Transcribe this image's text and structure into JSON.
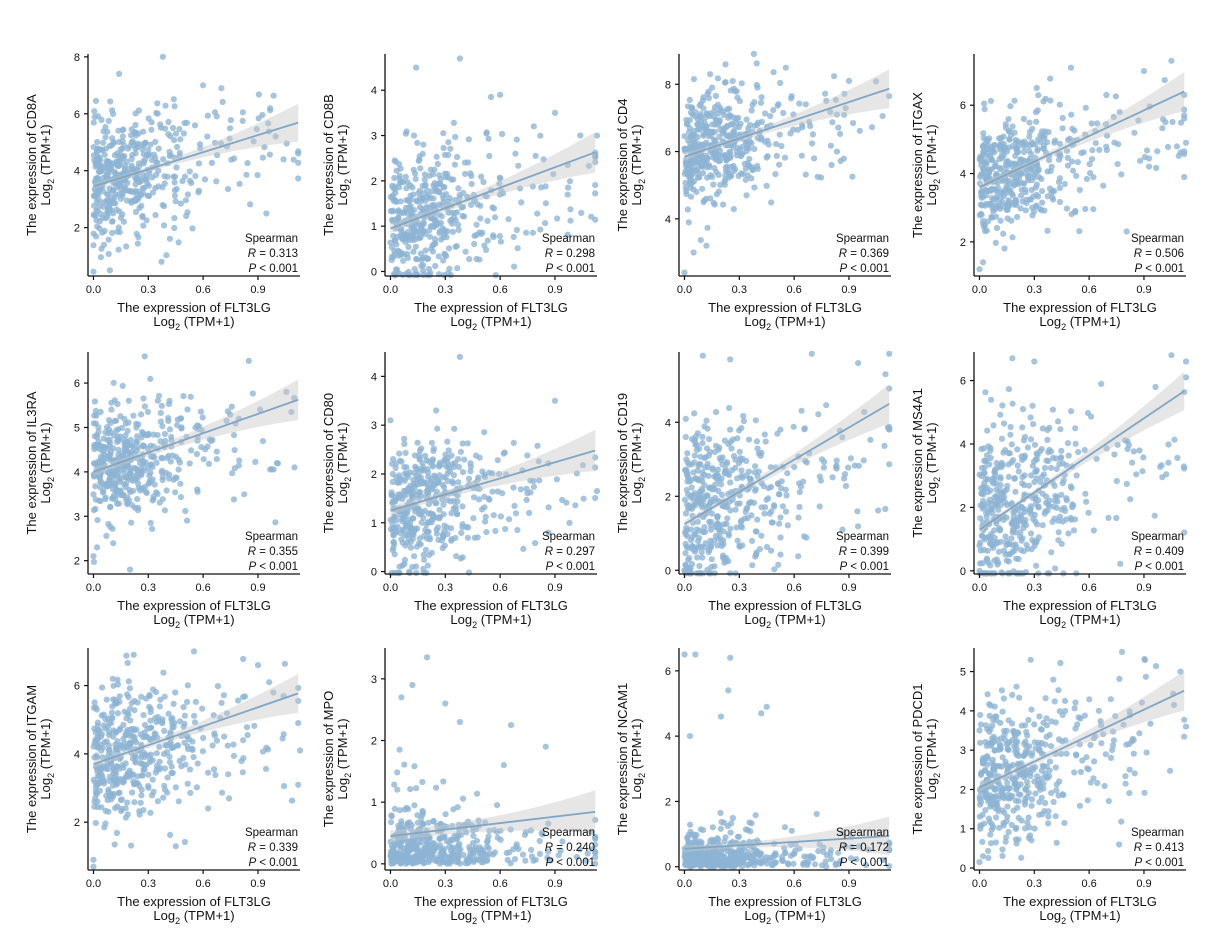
{
  "chart_data": [
    {
      "type": "scatter",
      "gene": "CD8A",
      "ylabel": "The expression of CD8A",
      "ylabel_sub": "Log2 (TPM+1)",
      "xlabel": "The expression of FLT3LG",
      "xlabel_sub": "Log2 (TPM+1)",
      "xlim": [
        -0.03,
        1.13
      ],
      "ylim": [
        0.3,
        8.1
      ],
      "xticks": [
        "0.0",
        "0.3",
        "0.6",
        "0.9"
      ],
      "yticks": [
        "2",
        "4",
        "6",
        "8"
      ],
      "fit": {
        "intercept": 3.45,
        "slope": 2.0
      },
      "stat_method": "Spearman",
      "r_text": "R = 0.313",
      "p_text": "P < 0.001",
      "y_mean": 3.9,
      "y_spread": 1.1,
      "n_points": 460,
      "outliers": [
        [
          0.38,
          8.0
        ],
        [
          0.14,
          7.4
        ],
        [
          0.6,
          7.0
        ],
        [
          0.7,
          6.9
        ],
        [
          0.0,
          0.45
        ],
        [
          0.09,
          0.5
        ]
      ]
    },
    {
      "type": "scatter",
      "gene": "CD8B",
      "ylabel": "The expression of CD8B",
      "ylabel_sub": "Log2 (TPM+1)",
      "xlabel": "The expression of FLT3LG",
      "xlabel_sub": "Log2 (TPM+1)",
      "xlim": [
        -0.03,
        1.13
      ],
      "ylim": [
        -0.1,
        4.8
      ],
      "xticks": [
        "0.0",
        "0.3",
        "0.6",
        "0.9"
      ],
      "yticks": [
        "0",
        "1",
        "2",
        "3",
        "4"
      ],
      "fit": {
        "intercept": 0.95,
        "slope": 1.5
      },
      "stat_method": "Spearman",
      "r_text": "R = 0.298",
      "p_text": "P < 0.001",
      "y_mean": 1.2,
      "y_spread": 0.75,
      "n_points": 460,
      "outliers": [
        [
          0.38,
          4.7
        ],
        [
          0.14,
          4.5
        ],
        [
          0.6,
          3.9
        ],
        [
          0.55,
          3.85
        ],
        [
          0.9,
          3.5
        ],
        [
          1.13,
          3.0
        ]
      ]
    },
    {
      "type": "scatter",
      "gene": "CD4",
      "ylabel": "The expression of CD4",
      "ylabel_sub": "Log2 (TPM+1)",
      "xlabel": "The expression of FLT3LG",
      "xlabel_sub": "Log2 (TPM+1)",
      "xlim": [
        -0.03,
        1.13
      ],
      "ylim": [
        2.3,
        8.9
      ],
      "xticks": [
        "0.0",
        "0.3",
        "0.6",
        "0.9"
      ],
      "yticks": [
        "4",
        "6",
        "8"
      ],
      "fit": {
        "intercept": 5.85,
        "slope": 1.8
      },
      "stat_method": "Spearman",
      "r_text": "R = 0.369",
      "p_text": "P < 0.001",
      "y_mean": 6.2,
      "y_spread": 0.75,
      "n_points": 460,
      "outliers": [
        [
          0.38,
          8.9
        ],
        [
          0.14,
          8.3
        ],
        [
          0.9,
          8.1
        ],
        [
          0.0,
          2.4
        ],
        [
          0.05,
          3.0
        ],
        [
          0.12,
          3.2
        ]
      ]
    },
    {
      "type": "scatter",
      "gene": "ITGAX",
      "ylabel": "The expression of ITGAX",
      "ylabel_sub": "Log2 (TPM+1)",
      "xlabel": "The expression of FLT3LG",
      "xlabel_sub": "Log2 (TPM+1)",
      "xlim": [
        -0.03,
        1.13
      ],
      "ylim": [
        1.0,
        7.5
      ],
      "xticks": [
        "0.0",
        "0.3",
        "0.6",
        "0.9"
      ],
      "yticks": [
        "2",
        "4",
        "6"
      ],
      "fit": {
        "intercept": 3.6,
        "slope": 2.5
      },
      "stat_method": "Spearman",
      "r_text": "R = 0.506",
      "p_text": "P < 0.001",
      "y_mean": 4.0,
      "y_spread": 0.85,
      "n_points": 460,
      "outliers": [
        [
          1.05,
          7.3
        ],
        [
          0.5,
          7.1
        ],
        [
          0.9,
          7.0
        ],
        [
          0.0,
          1.2
        ],
        [
          0.02,
          1.4
        ],
        [
          1.13,
          4.9
        ]
      ]
    },
    {
      "type": "scatter",
      "gene": "IL3RA",
      "ylabel": "The expression of IL3RA",
      "ylabel_sub": "Log2 (TPM+1)",
      "xlabel": "The expression of FLT3LG",
      "xlabel_sub": "Log2 (TPM+1)",
      "xlim": [
        -0.03,
        1.13
      ],
      "ylim": [
        1.7,
        6.7
      ],
      "xticks": [
        "0.0",
        "0.3",
        "0.6",
        "0.9"
      ],
      "yticks": [
        "2",
        "3",
        "4",
        "5",
        "6"
      ],
      "fit": {
        "intercept": 4.0,
        "slope": 1.45
      },
      "stat_method": "Spearman",
      "r_text": "R = 0.355",
      "p_text": "P < 0.001",
      "y_mean": 4.2,
      "y_spread": 0.6,
      "n_points": 460,
      "outliers": [
        [
          0.28,
          6.6
        ],
        [
          0.85,
          6.5
        ],
        [
          1.1,
          4.1
        ],
        [
          0.0,
          2.1
        ],
        [
          0.02,
          2.3
        ],
        [
          0.2,
          1.8
        ]
      ]
    },
    {
      "type": "scatter",
      "gene": "CD80",
      "ylabel": "The expression of CD80",
      "ylabel_sub": "Log2 (TPM+1)",
      "xlabel": "The expression of FLT3LG",
      "xlabel_sub": "Log2 (TPM+1)",
      "xlim": [
        -0.03,
        1.13
      ],
      "ylim": [
        -0.05,
        4.5
      ],
      "xticks": [
        "0.0",
        "0.3",
        "0.6",
        "0.9"
      ],
      "yticks": [
        "0",
        "1",
        "2",
        "3",
        "4"
      ],
      "fit": {
        "intercept": 1.25,
        "slope": 1.1
      },
      "stat_method": "Spearman",
      "r_text": "R = 0.297",
      "p_text": "P < 0.001",
      "y_mean": 1.35,
      "y_spread": 0.65,
      "n_points": 460,
      "outliers": [
        [
          0.38,
          4.4
        ],
        [
          0.9,
          3.5
        ],
        [
          0.0,
          3.1
        ],
        [
          0.25,
          3.3
        ],
        [
          1.13,
          1.65
        ],
        [
          0.05,
          0.1
        ]
      ]
    },
    {
      "type": "scatter",
      "gene": "CD19",
      "ylabel": "The expression of CD19",
      "ylabel_sub": "Log2 (TPM+1)",
      "xlabel": "The expression of FLT3LG",
      "xlabel_sub": "Log2 (TPM+1)",
      "xlim": [
        -0.03,
        1.13
      ],
      "ylim": [
        -0.1,
        5.9
      ],
      "xticks": [
        "0.0",
        "0.3",
        "0.6",
        "0.9"
      ],
      "yticks": [
        "0",
        "2",
        "4"
      ],
      "fit": {
        "intercept": 1.25,
        "slope": 2.9
      },
      "stat_method": "Spearman",
      "r_text": "R = 0.399",
      "p_text": "P < 0.001",
      "y_mean": 1.9,
      "y_spread": 1.1,
      "n_points": 460,
      "outliers": [
        [
          0.1,
          5.8
        ],
        [
          0.25,
          5.7
        ],
        [
          0.95,
          5.6
        ],
        [
          1.1,
          5.3
        ],
        [
          0.0,
          0.0
        ],
        [
          0.02,
          0.05
        ]
      ]
    },
    {
      "type": "scatter",
      "gene": "MS4A1",
      "ylabel": "The expression of MS4A1",
      "ylabel_sub": "Log2 (TPM+1)",
      "xlabel": "The expression of FLT3LG",
      "xlabel_sub": "Log2 (TPM+1)",
      "xlim": [
        -0.03,
        1.13
      ],
      "ylim": [
        -0.1,
        6.9
      ],
      "xticks": [
        "0.0",
        "0.3",
        "0.6",
        "0.9"
      ],
      "yticks": [
        "0",
        "2",
        "4",
        "6"
      ],
      "fit": {
        "intercept": 1.3,
        "slope": 3.9
      },
      "stat_method": "Spearman",
      "r_text": "R = 0.409",
      "p_text": "P < 0.001",
      "y_mean": 2.0,
      "y_spread": 1.4,
      "n_points": 460,
      "outliers": [
        [
          0.18,
          6.7
        ],
        [
          0.3,
          6.6
        ],
        [
          1.05,
          6.8
        ],
        [
          1.13,
          6.6
        ],
        [
          1.13,
          6.1
        ],
        [
          0.0,
          0.0
        ]
      ]
    },
    {
      "type": "scatter",
      "gene": "ITGAM",
      "ylabel": "The expression of ITGAM",
      "ylabel_sub": "Log2 (TPM+1)",
      "xlabel": "The expression of FLT3LG",
      "xlabel_sub": "Log2 (TPM+1)",
      "xlim": [
        -0.03,
        1.13
      ],
      "ylim": [
        0.6,
        7.1
      ],
      "xticks": [
        "0.0",
        "0.3",
        "0.6",
        "0.9"
      ],
      "yticks": [
        "2",
        "4",
        "6"
      ],
      "fit": {
        "intercept": 3.7,
        "slope": 1.85
      },
      "stat_method": "Spearman",
      "r_text": "R = 0.339",
      "p_text": "P < 0.001",
      "y_mean": 3.9,
      "y_spread": 1.0,
      "n_points": 460,
      "outliers": [
        [
          0.22,
          6.9
        ],
        [
          0.55,
          7.0
        ],
        [
          0.9,
          6.6
        ],
        [
          0.0,
          0.7
        ],
        [
          0.0,
          0.9
        ],
        [
          1.13,
          4.1
        ]
      ]
    },
    {
      "type": "scatter",
      "gene": "MPO",
      "ylabel": "The expression of MPO",
      "ylabel_sub": "Log2 (TPM+1)",
      "xlabel": "The expression of FLT3LG",
      "xlabel_sub": "Log2 (TPM+1)",
      "xlim": [
        -0.03,
        1.13
      ],
      "ylim": [
        -0.1,
        3.5
      ],
      "xticks": [
        "0.0",
        "0.3",
        "0.6",
        "0.9"
      ],
      "yticks": [
        "0",
        "1",
        "2",
        "3"
      ],
      "fit": {
        "intercept": 0.45,
        "slope": 0.35
      },
      "stat_method": "Spearman",
      "r_text": "R = 0.240",
      "p_text": "P < 0.001",
      "y_mean": 0.3,
      "y_spread": 0.35,
      "n_points": 460,
      "outliers": [
        [
          0.2,
          3.35
        ],
        [
          0.12,
          2.9
        ],
        [
          0.06,
          2.7
        ],
        [
          0.3,
          2.6
        ],
        [
          0.38,
          2.3
        ],
        [
          0.66,
          2.25
        ],
        [
          0.85,
          1.9
        ],
        [
          0.05,
          1.85
        ]
      ]
    },
    {
      "type": "scatter",
      "gene": "NCAM1",
      "ylabel": "The expression of NCAM1",
      "ylabel_sub": "Log2 (TPM+1)",
      "xlabel": "The expression of FLT3LG",
      "xlabel_sub": "Log2 (TPM+1)",
      "xlim": [
        -0.03,
        1.13
      ],
      "ylim": [
        -0.1,
        6.7
      ],
      "xticks": [
        "0.0",
        "0.3",
        "0.6",
        "0.9"
      ],
      "yticks": [
        "0",
        "2",
        "4",
        "6"
      ],
      "fit": {
        "intercept": 0.55,
        "slope": 0.35
      },
      "stat_method": "Spearman",
      "r_text": "R = 0.172",
      "p_text": "P < 0.001",
      "y_mean": 0.35,
      "y_spread": 0.45,
      "n_points": 460,
      "outliers": [
        [
          0.0,
          6.5
        ],
        [
          0.06,
          6.5
        ],
        [
          0.25,
          6.4
        ],
        [
          0.24,
          5.4
        ],
        [
          0.2,
          4.6
        ],
        [
          0.45,
          4.9
        ],
        [
          0.42,
          4.7
        ],
        [
          0.03,
          4.0
        ]
      ]
    },
    {
      "type": "scatter",
      "gene": "PDCD1",
      "ylabel": "The expression of PDCD1",
      "ylabel_sub": "Log2 (TPM+1)",
      "xlabel": "The expression of FLT3LG",
      "xlabel_sub": "Log2 (TPM+1)",
      "xlim": [
        -0.03,
        1.13
      ],
      "ylim": [
        -0.05,
        5.6
      ],
      "xticks": [
        "0.0",
        "0.3",
        "0.6",
        "0.9"
      ],
      "yticks": [
        "0",
        "1",
        "2",
        "3",
        "4",
        "5"
      ],
      "fit": {
        "intercept": 2.05,
        "slope": 2.2
      },
      "stat_method": "Spearman",
      "r_text": "R = 0.413",
      "p_text": "P < 0.001",
      "y_mean": 2.4,
      "y_spread": 0.9,
      "n_points": 460,
      "outliers": [
        [
          0.28,
          5.3
        ],
        [
          0.78,
          5.5
        ],
        [
          1.1,
          5.0
        ],
        [
          0.0,
          0.15
        ],
        [
          0.02,
          0.3
        ],
        [
          1.13,
          3.6
        ]
      ]
    }
  ]
}
